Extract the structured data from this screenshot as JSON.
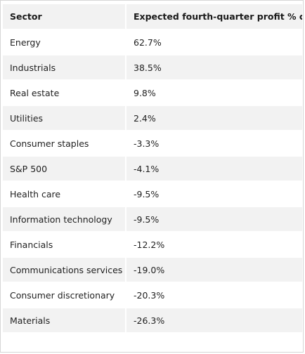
{
  "table": {
    "headers": [
      "Sector",
      "Expected fourth-quarter profit % ch."
    ],
    "rows": [
      {
        "sector": "Energy",
        "value": "62.7%"
      },
      {
        "sector": "Industrials",
        "value": "38.5%"
      },
      {
        "sector": "Real estate",
        "value": "9.8%"
      },
      {
        "sector": "Utilities",
        "value": "2.4%"
      },
      {
        "sector": "Consumer staples",
        "value": "-3.3%"
      },
      {
        "sector": "S&P 500",
        "value": "-4.1%"
      },
      {
        "sector": "Health care",
        "value": "-9.5%"
      },
      {
        "sector": "Information technology",
        "value": "-9.5%"
      },
      {
        "sector": "Financials",
        "value": "-12.2%"
      },
      {
        "sector": "Communications services",
        "value": "-19.0%"
      },
      {
        "sector": "Consumer discretionary",
        "value": "-20.3%"
      },
      {
        "sector": "Materials",
        "value": "-26.3%"
      }
    ]
  }
}
